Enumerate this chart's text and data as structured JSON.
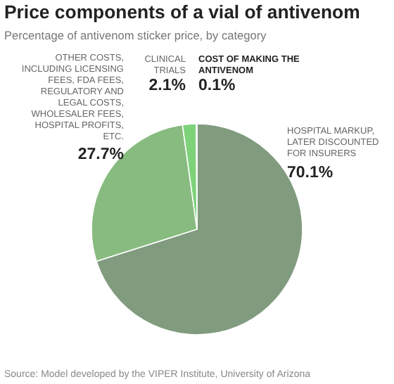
{
  "chart_data": {
    "type": "pie",
    "title": "Price components of a vial of antivenom",
    "subtitle": "Percentage of antivenom sticker price, by category",
    "categories": [
      "HOSPITAL MARKUP, LATER DISCOUNTED FOR INSURERS",
      "OTHER COSTS, INCLUDING LICENSING FEES, FDA FEES, REGULATORY AND LEGAL COSTS, WHOLESALER FEES, HOSPITAL PROFITS, ETC.",
      "CLINICAL TRIALS",
      "COST OF MAKING THE ANTIVENOM"
    ],
    "values": [
      70.1,
      27.7,
      2.1,
      0.1
    ],
    "value_labels": [
      "70.1%",
      "27.7%",
      "2.1%",
      "0.1%"
    ],
    "colors": [
      "#819b7f",
      "#88bb80",
      "#7ed27a",
      "#4e5e4c"
    ],
    "annotations": [
      "Source: Model developed by the VIPER Institute, University of Arizona"
    ]
  }
}
